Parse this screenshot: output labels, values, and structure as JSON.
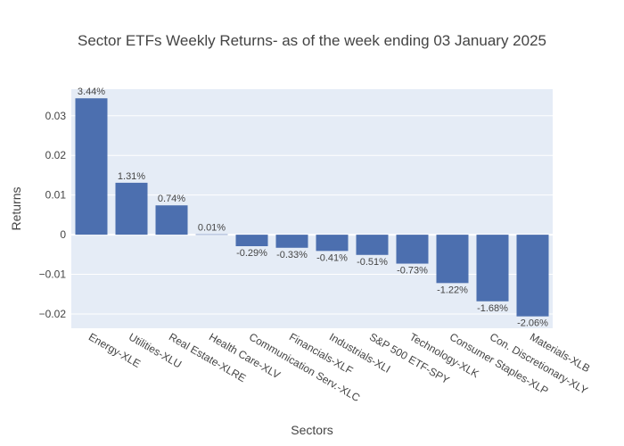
{
  "chart_data": {
    "type": "bar",
    "title": "Sector ETFs Weekly Returns- as of the week ending 03 January 2025",
    "xlabel": "Sectors",
    "ylabel": "Returns",
    "categories": [
      "Energy-XLE",
      "Utilities-XLU",
      "Real Estate-XLRE",
      "Health Care-XLV",
      "Communication Serv.-XLC",
      "Financials-XLF",
      "Industrials-XLI",
      "S&P 500 ETF-SPY",
      "Technology-XLK",
      "Consumer Staples-XLP",
      "Con. Discretionary-XLY",
      "Materials-XLB"
    ],
    "values": [
      0.0344,
      0.0131,
      0.0074,
      0.0001,
      -0.0029,
      -0.0033,
      -0.0041,
      -0.0051,
      -0.0073,
      -0.0122,
      -0.0168,
      -0.0206
    ],
    "data_labels": [
      "3.44%",
      "1.31%",
      "0.74%",
      "0.01%",
      "-0.29%",
      "-0.33%",
      "-0.41%",
      "-0.51%",
      "-0.73%",
      "-1.22%",
      "-1.68%",
      "-2.06%"
    ],
    "yticks": [
      -0.02,
      -0.01,
      0,
      0.01,
      0.02,
      0.03
    ],
    "ytick_labels": [
      "−0.02",
      "−0.01",
      "0",
      "0.01",
      "0.02",
      "0.03"
    ],
    "ylim": [
      -0.0236,
      0.0367
    ],
    "grid": true,
    "colors": {
      "bar": "#4c6faf",
      "plot_bg": "#e5ecf6",
      "grid": "#ffffff"
    }
  }
}
